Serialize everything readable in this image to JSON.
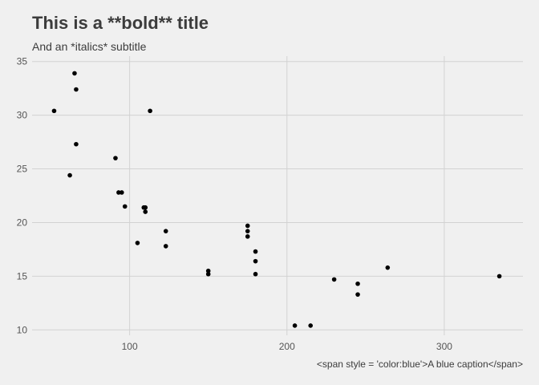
{
  "chart_data": {
    "type": "scatter",
    "title": "This is a **bold** title",
    "subtitle": "And an *italics* subtitle",
    "caption": "<span style = 'color:blue'>A blue caption</span>",
    "xlabel": "",
    "ylabel": "",
    "xlim": [
      38,
      350
    ],
    "ylim": [
      9.5,
      35.5
    ],
    "x_ticks": [
      100,
      200,
      300
    ],
    "y_ticks": [
      10,
      15,
      20,
      25,
      30,
      35
    ],
    "grid": true,
    "legend": "none",
    "point_color": "#000000",
    "points": [
      {
        "x": 52,
        "y": 30.4
      },
      {
        "x": 62,
        "y": 24.4
      },
      {
        "x": 65,
        "y": 33.9
      },
      {
        "x": 66,
        "y": 32.4
      },
      {
        "x": 66,
        "y": 27.3
      },
      {
        "x": 91,
        "y": 26.0
      },
      {
        "x": 93,
        "y": 22.8
      },
      {
        "x": 95,
        "y": 22.8
      },
      {
        "x": 97,
        "y": 21.5
      },
      {
        "x": 105,
        "y": 18.1
      },
      {
        "x": 109,
        "y": 21.4
      },
      {
        "x": 110,
        "y": 21.4
      },
      {
        "x": 110,
        "y": 21.0
      },
      {
        "x": 113,
        "y": 30.4
      },
      {
        "x": 123,
        "y": 19.2
      },
      {
        "x": 123,
        "y": 17.8
      },
      {
        "x": 150,
        "y": 15.5
      },
      {
        "x": 150,
        "y": 15.2
      },
      {
        "x": 175,
        "y": 19.7
      },
      {
        "x": 175,
        "y": 19.2
      },
      {
        "x": 175,
        "y": 18.7
      },
      {
        "x": 180,
        "y": 17.3
      },
      {
        "x": 180,
        "y": 16.4
      },
      {
        "x": 180,
        "y": 15.2
      },
      {
        "x": 205,
        "y": 10.4
      },
      {
        "x": 215,
        "y": 10.4
      },
      {
        "x": 230,
        "y": 14.7
      },
      {
        "x": 245,
        "y": 14.3
      },
      {
        "x": 245,
        "y": 13.3
      },
      {
        "x": 264,
        "y": 15.8
      },
      {
        "x": 335,
        "y": 15.0
      }
    ]
  }
}
